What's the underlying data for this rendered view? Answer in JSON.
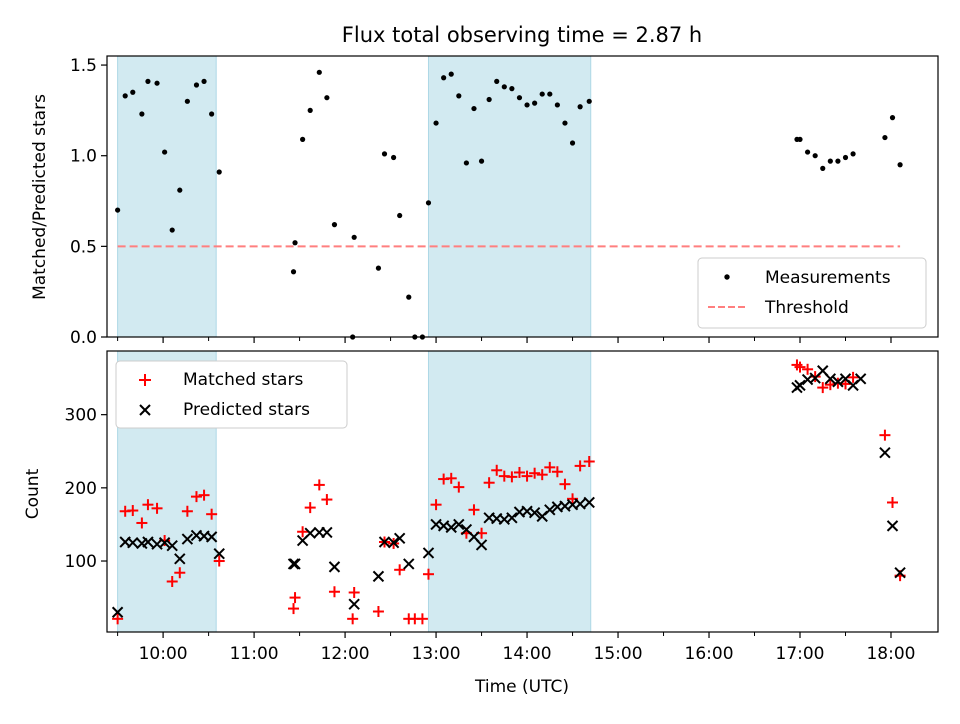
{
  "title": "Flux total observing time = 2.87 h",
  "colors": {
    "measurement": "#000000",
    "threshold": "#ff7f7f",
    "matched": "#ff0000",
    "predicted": "#000000",
    "shade": "#add8e6"
  },
  "chart_data": [
    {
      "type": "scatter",
      "ylabel": "Matched/Predicted stars",
      "ylim": [
        0,
        1.55
      ],
      "yticks": [
        "0.0",
        "0.5",
        "1.0",
        "1.5"
      ],
      "xlim": [
        "09:23",
        "18:31"
      ],
      "shaded_intervals": [
        [
          "09:30",
          "10:35"
        ],
        [
          "12:55",
          "14:42"
        ]
      ],
      "threshold": {
        "value": 0.5,
        "x_range": [
          "09:30",
          "18:06"
        ]
      },
      "legend": {
        "position": "lower-right",
        "entries": [
          "Measurements",
          "Threshold"
        ]
      },
      "series": [
        {
          "name": "Measurements",
          "points": [
            [
              "09:30",
              0.7
            ],
            [
              "09:35",
              1.33
            ],
            [
              "09:40",
              1.35
            ],
            [
              "09:46",
              1.23
            ],
            [
              "09:50",
              1.41
            ],
            [
              "09:56",
              1.4
            ],
            [
              "10:01",
              1.02
            ],
            [
              "10:06",
              0.59
            ],
            [
              "10:11",
              0.81
            ],
            [
              "10:16",
              1.3
            ],
            [
              "10:22",
              1.39
            ],
            [
              "10:27",
              1.41
            ],
            [
              "10:32",
              1.23
            ],
            [
              "10:37",
              0.91
            ],
            [
              "11:26",
              0.36
            ],
            [
              "11:27",
              0.52
            ],
            [
              "11:32",
              1.09
            ],
            [
              "11:37",
              1.25
            ],
            [
              "11:43",
              1.46
            ],
            [
              "11:48",
              1.32
            ],
            [
              "11:53",
              0.62
            ],
            [
              "12:05",
              0.0
            ],
            [
              "12:06",
              0.55
            ],
            [
              "12:22",
              0.38
            ],
            [
              "12:26",
              1.01
            ],
            [
              "12:32",
              0.99
            ],
            [
              "12:36",
              0.67
            ],
            [
              "12:42",
              0.22
            ],
            [
              "12:46",
              0.0
            ],
            [
              "12:51",
              0.0
            ],
            [
              "12:55",
              0.74
            ],
            [
              "13:00",
              1.18
            ],
            [
              "13:05",
              1.43
            ],
            [
              "13:10",
              1.45
            ],
            [
              "13:15",
              1.33
            ],
            [
              "13:20",
              0.96
            ],
            [
              "13:25",
              1.26
            ],
            [
              "13:30",
              0.97
            ],
            [
              "13:35",
              1.31
            ],
            [
              "13:40",
              1.41
            ],
            [
              "13:45",
              1.38
            ],
            [
              "13:50",
              1.37
            ],
            [
              "13:55",
              1.32
            ],
            [
              "14:00",
              1.28
            ],
            [
              "14:05",
              1.29
            ],
            [
              "14:10",
              1.34
            ],
            [
              "14:15",
              1.34
            ],
            [
              "14:20",
              1.28
            ],
            [
              "14:25",
              1.18
            ],
            [
              "14:30",
              1.07
            ],
            [
              "14:35",
              1.27
            ],
            [
              "14:41",
              1.3
            ],
            [
              "16:58",
              1.09
            ],
            [
              "17:00",
              1.09
            ],
            [
              "17:05",
              1.02
            ],
            [
              "17:10",
              1.0
            ],
            [
              "17:15",
              0.93
            ],
            [
              "17:20",
              0.97
            ],
            [
              "17:25",
              0.97
            ],
            [
              "17:30",
              0.99
            ],
            [
              "17:35",
              1.01
            ],
            [
              "17:56",
              1.1
            ],
            [
              "18:01",
              1.21
            ],
            [
              "18:06",
              0.95
            ]
          ]
        }
      ]
    },
    {
      "type": "scatter",
      "xlabel": "Time (UTC)",
      "ylabel": "Count",
      "ylim": [
        3,
        387
      ],
      "yticks": [
        "100",
        "200",
        "300"
      ],
      "xticks": [
        "10:00",
        "11:00",
        "12:00",
        "13:00",
        "14:00",
        "15:00",
        "16:00",
        "17:00",
        "18:00"
      ],
      "legend": {
        "position": "upper-left",
        "entries": [
          "Matched stars",
          "Predicted stars"
        ]
      },
      "series": [
        {
          "name": "Matched stars",
          "points": [
            [
              "09:30",
              21
            ],
            [
              "09:35",
              168
            ],
            [
              "09:40",
              169
            ],
            [
              "09:46",
              152
            ],
            [
              "09:50",
              177
            ],
            [
              "09:56",
              172
            ],
            [
              "10:01",
              128
            ],
            [
              "10:06",
              72
            ],
            [
              "10:11",
              84
            ],
            [
              "10:16",
              168
            ],
            [
              "10:22",
              188
            ],
            [
              "10:27",
              190
            ],
            [
              "10:32",
              164
            ],
            [
              "10:37",
              100
            ],
            [
              "11:26",
              35
            ],
            [
              "11:27",
              50
            ],
            [
              "11:32",
              140
            ],
            [
              "11:37",
              173
            ],
            [
              "11:43",
              204
            ],
            [
              "11:48",
              184
            ],
            [
              "11:53",
              58
            ],
            [
              "12:05",
              21
            ],
            [
              "12:06",
              57
            ],
            [
              "12:22",
              31
            ],
            [
              "12:26",
              126
            ],
            [
              "12:32",
              124
            ],
            [
              "12:36",
              88
            ],
            [
              "12:42",
              21
            ],
            [
              "12:46",
              21
            ],
            [
              "12:51",
              21
            ],
            [
              "12:55",
              82
            ],
            [
              "13:00",
              177
            ],
            [
              "13:05",
              212
            ],
            [
              "13:10",
              213
            ],
            [
              "13:15",
              201
            ],
            [
              "13:20",
              138
            ],
            [
              "13:25",
              170
            ],
            [
              "13:30",
              138
            ],
            [
              "13:35",
              207
            ],
            [
              "13:40",
              224
            ],
            [
              "13:45",
              216
            ],
            [
              "13:50",
              215
            ],
            [
              "13:55",
              221
            ],
            [
              "14:00",
              216
            ],
            [
              "14:05",
              220
            ],
            [
              "14:10",
              218
            ],
            [
              "14:15",
              228
            ],
            [
              "14:20",
              222
            ],
            [
              "14:25",
              205
            ],
            [
              "14:30",
              185
            ],
            [
              "14:35",
              230
            ],
            [
              "14:41",
              236
            ],
            [
              "16:58",
              368
            ],
            [
              "17:00",
              365
            ],
            [
              "17:05",
              362
            ],
            [
              "17:10",
              352
            ],
            [
              "17:15",
              337
            ],
            [
              "17:20",
              341
            ],
            [
              "17:25",
              343
            ],
            [
              "17:30",
              342
            ],
            [
              "17:35",
              351
            ],
            [
              "17:56",
              272
            ],
            [
              "18:01",
              180
            ],
            [
              "18:06",
              80
            ]
          ]
        },
        {
          "name": "Predicted stars",
          "points": [
            [
              "09:30",
              30
            ],
            [
              "09:35",
              126
            ],
            [
              "09:40",
              125
            ],
            [
              "09:46",
              124
            ],
            [
              "09:50",
              126
            ],
            [
              "09:56",
              123
            ],
            [
              "10:01",
              125
            ],
            [
              "10:06",
              121
            ],
            [
              "10:11",
              103
            ],
            [
              "10:16",
              130
            ],
            [
              "10:22",
              135
            ],
            [
              "10:27",
              134
            ],
            [
              "10:32",
              133
            ],
            [
              "10:37",
              110
            ],
            [
              "11:26",
              96
            ],
            [
              "11:27",
              96
            ],
            [
              "11:32",
              128
            ],
            [
              "11:37",
              138
            ],
            [
              "11:43",
              139
            ],
            [
              "11:48",
              139
            ],
            [
              "11:53",
              92
            ],
            [
              "12:06",
              41
            ],
            [
              "12:22",
              79
            ],
            [
              "12:26",
              126
            ],
            [
              "12:32",
              125
            ],
            [
              "12:36",
              131
            ],
            [
              "12:42",
              96
            ],
            [
              "12:55",
              111
            ],
            [
              "13:00",
              150
            ],
            [
              "13:05",
              148
            ],
            [
              "13:10",
              146
            ],
            [
              "13:15",
              150
            ],
            [
              "13:20",
              143
            ],
            [
              "13:25",
              133
            ],
            [
              "13:30",
              122
            ],
            [
              "13:35",
              159
            ],
            [
              "13:40",
              158
            ],
            [
              "13:45",
              157
            ],
            [
              "13:50",
              159
            ],
            [
              "13:55",
              167
            ],
            [
              "14:00",
              168
            ],
            [
              "14:05",
              166
            ],
            [
              "14:10",
              161
            ],
            [
              "14:15",
              170
            ],
            [
              "14:20",
              174
            ],
            [
              "14:25",
              175
            ],
            [
              "14:30",
              177
            ],
            [
              "14:35",
              178
            ],
            [
              "14:41",
              180
            ],
            [
              "16:58",
              337
            ],
            [
              "17:00",
              340
            ],
            [
              "17:05",
              348
            ],
            [
              "17:10",
              350
            ],
            [
              "17:15",
              360
            ],
            [
              "17:20",
              349
            ],
            [
              "17:25",
              345
            ],
            [
              "17:30",
              349
            ],
            [
              "17:35",
              340
            ],
            [
              "17:40",
              349
            ],
            [
              "17:56",
              248
            ],
            [
              "18:01",
              148
            ],
            [
              "18:06",
              84
            ]
          ]
        }
      ]
    }
  ]
}
